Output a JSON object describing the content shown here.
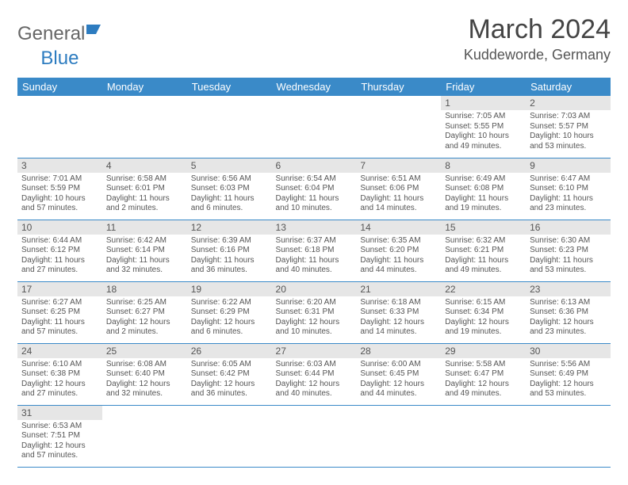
{
  "brand": {
    "part1": "General",
    "part2": "Blue"
  },
  "title": "March 2024",
  "subtitle": "Kuddeworde, Germany",
  "colors": {
    "header_bg": "#3a8ac8",
    "daynum_bg": "#e6e6e6",
    "border": "#3a8ac8"
  },
  "dayHeaders": [
    "Sunday",
    "Monday",
    "Tuesday",
    "Wednesday",
    "Thursday",
    "Friday",
    "Saturday"
  ],
  "weeks": [
    [
      null,
      null,
      null,
      null,
      null,
      {
        "n": "1",
        "sr": "Sunrise: 7:05 AM",
        "ss": "Sunset: 5:55 PM",
        "d1": "Daylight: 10 hours",
        "d2": "and 49 minutes."
      },
      {
        "n": "2",
        "sr": "Sunrise: 7:03 AM",
        "ss": "Sunset: 5:57 PM",
        "d1": "Daylight: 10 hours",
        "d2": "and 53 minutes."
      }
    ],
    [
      {
        "n": "3",
        "sr": "Sunrise: 7:01 AM",
        "ss": "Sunset: 5:59 PM",
        "d1": "Daylight: 10 hours",
        "d2": "and 57 minutes."
      },
      {
        "n": "4",
        "sr": "Sunrise: 6:58 AM",
        "ss": "Sunset: 6:01 PM",
        "d1": "Daylight: 11 hours",
        "d2": "and 2 minutes."
      },
      {
        "n": "5",
        "sr": "Sunrise: 6:56 AM",
        "ss": "Sunset: 6:03 PM",
        "d1": "Daylight: 11 hours",
        "d2": "and 6 minutes."
      },
      {
        "n": "6",
        "sr": "Sunrise: 6:54 AM",
        "ss": "Sunset: 6:04 PM",
        "d1": "Daylight: 11 hours",
        "d2": "and 10 minutes."
      },
      {
        "n": "7",
        "sr": "Sunrise: 6:51 AM",
        "ss": "Sunset: 6:06 PM",
        "d1": "Daylight: 11 hours",
        "d2": "and 14 minutes."
      },
      {
        "n": "8",
        "sr": "Sunrise: 6:49 AM",
        "ss": "Sunset: 6:08 PM",
        "d1": "Daylight: 11 hours",
        "d2": "and 19 minutes."
      },
      {
        "n": "9",
        "sr": "Sunrise: 6:47 AM",
        "ss": "Sunset: 6:10 PM",
        "d1": "Daylight: 11 hours",
        "d2": "and 23 minutes."
      }
    ],
    [
      {
        "n": "10",
        "sr": "Sunrise: 6:44 AM",
        "ss": "Sunset: 6:12 PM",
        "d1": "Daylight: 11 hours",
        "d2": "and 27 minutes."
      },
      {
        "n": "11",
        "sr": "Sunrise: 6:42 AM",
        "ss": "Sunset: 6:14 PM",
        "d1": "Daylight: 11 hours",
        "d2": "and 32 minutes."
      },
      {
        "n": "12",
        "sr": "Sunrise: 6:39 AM",
        "ss": "Sunset: 6:16 PM",
        "d1": "Daylight: 11 hours",
        "d2": "and 36 minutes."
      },
      {
        "n": "13",
        "sr": "Sunrise: 6:37 AM",
        "ss": "Sunset: 6:18 PM",
        "d1": "Daylight: 11 hours",
        "d2": "and 40 minutes."
      },
      {
        "n": "14",
        "sr": "Sunrise: 6:35 AM",
        "ss": "Sunset: 6:20 PM",
        "d1": "Daylight: 11 hours",
        "d2": "and 44 minutes."
      },
      {
        "n": "15",
        "sr": "Sunrise: 6:32 AM",
        "ss": "Sunset: 6:21 PM",
        "d1": "Daylight: 11 hours",
        "d2": "and 49 minutes."
      },
      {
        "n": "16",
        "sr": "Sunrise: 6:30 AM",
        "ss": "Sunset: 6:23 PM",
        "d1": "Daylight: 11 hours",
        "d2": "and 53 minutes."
      }
    ],
    [
      {
        "n": "17",
        "sr": "Sunrise: 6:27 AM",
        "ss": "Sunset: 6:25 PM",
        "d1": "Daylight: 11 hours",
        "d2": "and 57 minutes."
      },
      {
        "n": "18",
        "sr": "Sunrise: 6:25 AM",
        "ss": "Sunset: 6:27 PM",
        "d1": "Daylight: 12 hours",
        "d2": "and 2 minutes."
      },
      {
        "n": "19",
        "sr": "Sunrise: 6:22 AM",
        "ss": "Sunset: 6:29 PM",
        "d1": "Daylight: 12 hours",
        "d2": "and 6 minutes."
      },
      {
        "n": "20",
        "sr": "Sunrise: 6:20 AM",
        "ss": "Sunset: 6:31 PM",
        "d1": "Daylight: 12 hours",
        "d2": "and 10 minutes."
      },
      {
        "n": "21",
        "sr": "Sunrise: 6:18 AM",
        "ss": "Sunset: 6:33 PM",
        "d1": "Daylight: 12 hours",
        "d2": "and 14 minutes."
      },
      {
        "n": "22",
        "sr": "Sunrise: 6:15 AM",
        "ss": "Sunset: 6:34 PM",
        "d1": "Daylight: 12 hours",
        "d2": "and 19 minutes."
      },
      {
        "n": "23",
        "sr": "Sunrise: 6:13 AM",
        "ss": "Sunset: 6:36 PM",
        "d1": "Daylight: 12 hours",
        "d2": "and 23 minutes."
      }
    ],
    [
      {
        "n": "24",
        "sr": "Sunrise: 6:10 AM",
        "ss": "Sunset: 6:38 PM",
        "d1": "Daylight: 12 hours",
        "d2": "and 27 minutes."
      },
      {
        "n": "25",
        "sr": "Sunrise: 6:08 AM",
        "ss": "Sunset: 6:40 PM",
        "d1": "Daylight: 12 hours",
        "d2": "and 32 minutes."
      },
      {
        "n": "26",
        "sr": "Sunrise: 6:05 AM",
        "ss": "Sunset: 6:42 PM",
        "d1": "Daylight: 12 hours",
        "d2": "and 36 minutes."
      },
      {
        "n": "27",
        "sr": "Sunrise: 6:03 AM",
        "ss": "Sunset: 6:44 PM",
        "d1": "Daylight: 12 hours",
        "d2": "and 40 minutes."
      },
      {
        "n": "28",
        "sr": "Sunrise: 6:00 AM",
        "ss": "Sunset: 6:45 PM",
        "d1": "Daylight: 12 hours",
        "d2": "and 44 minutes."
      },
      {
        "n": "29",
        "sr": "Sunrise: 5:58 AM",
        "ss": "Sunset: 6:47 PM",
        "d1": "Daylight: 12 hours",
        "d2": "and 49 minutes."
      },
      {
        "n": "30",
        "sr": "Sunrise: 5:56 AM",
        "ss": "Sunset: 6:49 PM",
        "d1": "Daylight: 12 hours",
        "d2": "and 53 minutes."
      }
    ],
    [
      {
        "n": "31",
        "sr": "Sunrise: 6:53 AM",
        "ss": "Sunset: 7:51 PM",
        "d1": "Daylight: 12 hours",
        "d2": "and 57 minutes."
      },
      null,
      null,
      null,
      null,
      null,
      null
    ]
  ]
}
